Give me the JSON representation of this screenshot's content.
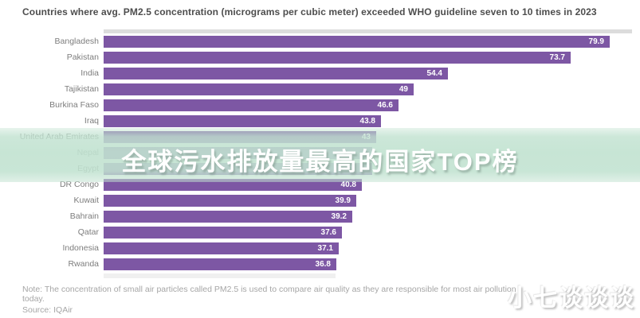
{
  "header": {
    "title": "Countries where avg. PM2.5 concentration (micrograms per cubic meter) exceeded WHO guideline seven to 10 times in 2023"
  },
  "chart_data": {
    "type": "bar",
    "orientation": "horizontal",
    "title": "Countries where avg. PM2.5 concentration (micrograms per cubic meter) exceeded WHO guideline seven to 10 times in 2023",
    "categories": [
      "Bangladesh",
      "Pakistan",
      "India",
      "Tajikistan",
      "Burkina Faso",
      "Iraq",
      "United Arab Emirates",
      "Nepal",
      "Egypt",
      "DR Congo",
      "Kuwait",
      "Bahrain",
      "Qatar",
      "Indonesia",
      "Rwanda"
    ],
    "values": [
      79.9,
      73.7,
      54.4,
      49,
      46.6,
      43.8,
      43,
      42.4,
      42.4,
      40.8,
      39.9,
      39.2,
      37.6,
      37.1,
      36.8
    ],
    "value_labels": [
      "79.9",
      "73.7",
      "54.4",
      "49",
      "46.6",
      "43.8",
      "43",
      "",
      "",
      "40.8",
      "39.9",
      "39.2",
      "37.6",
      "37.1",
      "36.8"
    ],
    "values_hidden_by_overlay": [
      "Nepal",
      "Egypt"
    ],
    "bar_color": "#7d57a4",
    "xlim": [
      0,
      80
    ],
    "grid": false,
    "legend": false,
    "ylabel": "",
    "xlabel": ""
  },
  "overlay": {
    "text": "全球污水排放量最高的国家TOP榜",
    "band_color": "#c1e2d0",
    "text_color": "#ffffff"
  },
  "footer": {
    "note": "Note: The concentration of small air particles called PM2.5 is used to compare air quality as they are responsible for most air pollution today.",
    "source": "Source: IQAir"
  },
  "watermark": {
    "text": "小七谈谈谈"
  }
}
